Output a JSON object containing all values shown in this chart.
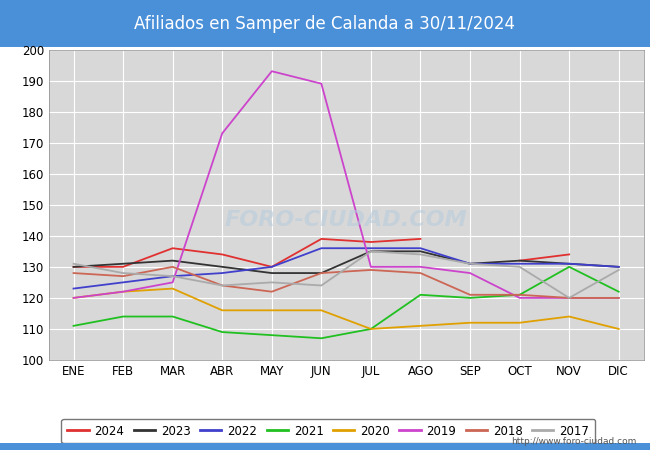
{
  "title": "Afiliados en Samper de Calanda a 30/11/2024",
  "title_bg_color": "#4a90d9",
  "title_text_color": "white",
  "ylim": [
    100,
    200
  ],
  "yticks": [
    100,
    110,
    120,
    130,
    140,
    150,
    160,
    170,
    180,
    190,
    200
  ],
  "months": [
    "ENE",
    "FEB",
    "MAR",
    "ABR",
    "MAY",
    "JUN",
    "JUL",
    "AGO",
    "SEP",
    "OCT",
    "NOV",
    "DIC"
  ],
  "watermark": "FORO-CIUDAD.COM",
  "url": "http://www.foro-ciudad.com",
  "bg_color": "#d8d8d8",
  "grid_color": "#ffffff",
  "series": {
    "2024": {
      "color": "#e03030",
      "data": [
        130,
        130,
        136,
        134,
        130,
        139,
        138,
        139,
        null,
        132,
        134,
        null
      ]
    },
    "2023": {
      "color": "#333333",
      "data": [
        130,
        131,
        132,
        130,
        128,
        128,
        135,
        135,
        131,
        132,
        131,
        130
      ]
    },
    "2022": {
      "color": "#4040cc",
      "data": [
        123,
        125,
        127,
        128,
        130,
        136,
        136,
        136,
        131,
        131,
        131,
        130
      ]
    },
    "2021": {
      "color": "#20c020",
      "data": [
        111,
        114,
        114,
        109,
        108,
        107,
        110,
        121,
        120,
        121,
        130,
        122
      ]
    },
    "2020": {
      "color": "#e0a000",
      "data": [
        120,
        122,
        123,
        116,
        116,
        116,
        110,
        111,
        112,
        112,
        114,
        110
      ]
    },
    "2019": {
      "color": "#cc44cc",
      "data": [
        120,
        122,
        125,
        173,
        193,
        189,
        130,
        130,
        128,
        120,
        120,
        120
      ]
    },
    "2018": {
      "color": "#cc6655",
      "data": [
        128,
        127,
        130,
        124,
        122,
        128,
        129,
        128,
        121,
        121,
        120,
        120
      ]
    },
    "2017": {
      "color": "#aaaaaa",
      "data": [
        131,
        128,
        127,
        124,
        125,
        124,
        135,
        134,
        131,
        130,
        120,
        129
      ]
    }
  },
  "series_order": [
    "2024",
    "2023",
    "2022",
    "2021",
    "2020",
    "2019",
    "2018",
    "2017"
  ]
}
